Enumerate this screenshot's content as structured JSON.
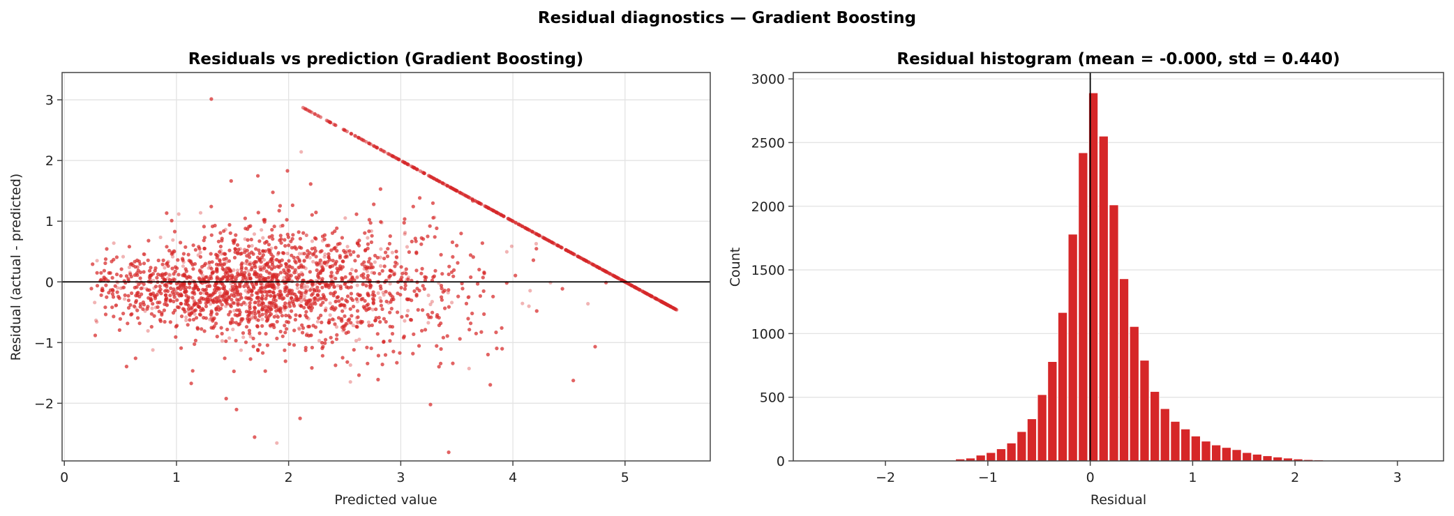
{
  "figure": {
    "suptitle": "Residual diagnostics — Gradient Boosting",
    "accent_color": "#d62728"
  },
  "chart_data": [
    {
      "type": "scatter",
      "title": "Residuals vs prediction  (Gradient Boosting)",
      "xlabel": "Predicted value",
      "ylabel": "Residual  (actual - predicted)",
      "xlim": [
        -0.02,
        5.76
      ],
      "ylim": [
        -2.95,
        3.45
      ],
      "xticks": [
        0,
        1,
        2,
        3,
        4,
        5
      ],
      "yticks": [
        -2,
        -1,
        0,
        1,
        2,
        3
      ],
      "reference_line": {
        "axis": "y",
        "value": 0
      },
      "grid": true,
      "point_color": "#d62728",
      "point_alpha": 0.35,
      "n_points": 20640,
      "cap_line": {
        "description": "points on y = 5.0001 - x",
        "x_range": [
          1.95,
          5.47
        ]
      },
      "distribution": {
        "pred_center": 1.85,
        "pred_spread": 0.95,
        "pred_min": 0.24,
        "pred_max": 5.5,
        "resid_std_base": 0.28
      }
    },
    {
      "type": "bar",
      "subtype": "histogram",
      "title": "Residual histogram  (mean = -0.000, std = 0.440)",
      "xlabel": "Residual",
      "ylabel": "Count",
      "xlim": [
        -2.9,
        3.45
      ],
      "ylim": [
        0,
        3050
      ],
      "xticks": [
        -2,
        -1,
        0,
        1,
        2,
        3
      ],
      "yticks": [
        0,
        500,
        1000,
        1500,
        2000,
        2500,
        3000
      ],
      "reference_line": {
        "axis": "x",
        "value": 0
      },
      "grid": "y",
      "bar_color": "#d62728",
      "bin_edges_start": -1.32,
      "bin_width": 0.1,
      "counts": [
        15,
        22,
        45,
        65,
        95,
        140,
        230,
        330,
        520,
        780,
        1165,
        1780,
        2420,
        2890,
        2550,
        2010,
        1430,
        1055,
        790,
        545,
        410,
        310,
        250,
        195,
        155,
        125,
        105,
        88,
        65,
        52,
        40,
        30,
        22,
        15,
        10,
        7,
        4,
        3,
        2
      ]
    }
  ]
}
